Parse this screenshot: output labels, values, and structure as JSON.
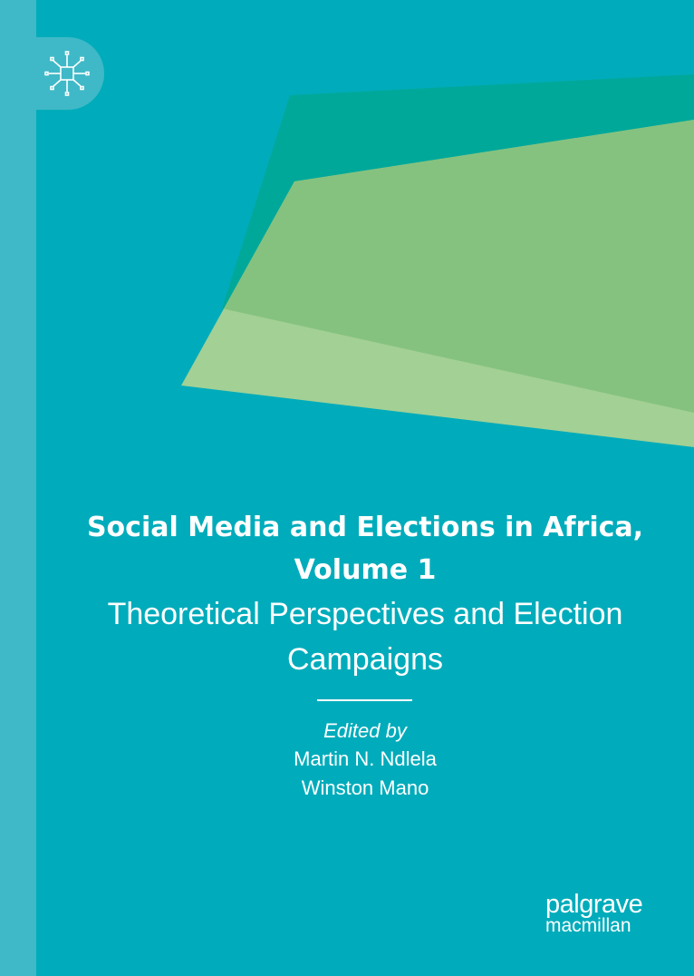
{
  "cover": {
    "colors": {
      "background": "#00acbb",
      "spine": "#3fb9c7",
      "dark_green": "#00a89a",
      "light_green": "#a3d095",
      "overlap_green": "#85c27f"
    },
    "logo_icon": "circuit-star-icon",
    "title": "Social Media and Elections in Africa, Volume 1",
    "subtitle": "Theoretical Perspectives and Election Campaigns",
    "edited_by": "Edited by",
    "editors": [
      "Martin N. Ndlela",
      "Winston Mano"
    ],
    "publisher": {
      "line1": "palgrave",
      "line2": "macmillan"
    }
  }
}
